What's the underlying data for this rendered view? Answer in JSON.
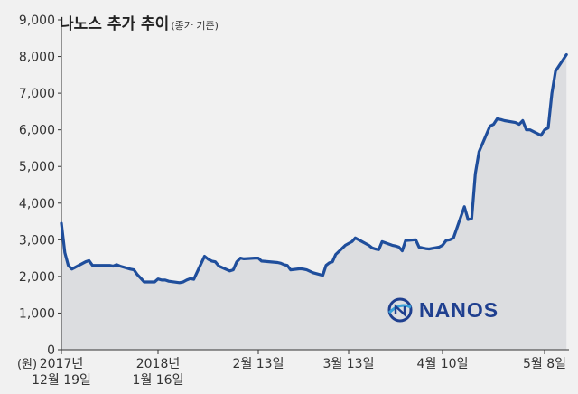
{
  "title": "나노스 추가 추이",
  "subtitle": "(종가 기준)",
  "logo_text": "NANOS",
  "colors": {
    "line": "#1f4e9c",
    "area": "#dcdde0",
    "axis": "#333333",
    "logo": "#1f3f8f"
  },
  "chart_data": {
    "type": "area",
    "title": "나노스 추가 추이",
    "subtitle": "(종가 기준)",
    "ylabel": "(원)",
    "ylim": [
      0,
      9000
    ],
    "yticks": [
      "0",
      "1,000",
      "2,000",
      "3,000",
      "4,000",
      "5,000",
      "6,000",
      "7,000",
      "8,000",
      "9,000"
    ],
    "xticks": [
      {
        "label": [
          "2017년",
          "12월 19일"
        ],
        "date": "2017-12-19"
      },
      {
        "label": [
          "2018년",
          "1월 16일"
        ],
        "date": "2018-01-16"
      },
      {
        "label": [
          "2월 13일"
        ],
        "date": "2018-02-13"
      },
      {
        "label": [
          "3월 13일"
        ],
        "date": "2018-03-13"
      },
      {
        "label": [
          "4월 10일"
        ],
        "date": "2018-04-10"
      },
      {
        "label": [
          "5월 8일"
        ],
        "date": "2018-05-08"
      }
    ],
    "grid": false,
    "series": [
      {
        "points": [
          [
            "2017-12-19",
            3450
          ],
          [
            "2017-12-20",
            2650
          ],
          [
            "2017-12-21",
            2300
          ],
          [
            "2017-12-22",
            2200
          ],
          [
            "2017-12-26",
            2400
          ],
          [
            "2017-12-27",
            2430
          ],
          [
            "2017-12-28",
            2300
          ],
          [
            "2018-01-02",
            2300
          ],
          [
            "2018-01-03",
            2280
          ],
          [
            "2018-01-04",
            2320
          ],
          [
            "2018-01-05",
            2280
          ],
          [
            "2018-01-08",
            2200
          ],
          [
            "2018-01-09",
            2180
          ],
          [
            "2018-01-10",
            2050
          ],
          [
            "2018-01-11",
            1950
          ],
          [
            "2018-01-12",
            1850
          ],
          [
            "2018-01-15",
            1850
          ],
          [
            "2018-01-16",
            1930
          ],
          [
            "2018-01-17",
            1900
          ],
          [
            "2018-01-18",
            1900
          ],
          [
            "2018-01-19",
            1870
          ],
          [
            "2018-01-22",
            1830
          ],
          [
            "2018-01-23",
            1850
          ],
          [
            "2018-01-24",
            1900
          ],
          [
            "2018-01-25",
            1940
          ],
          [
            "2018-01-26",
            1920
          ],
          [
            "2018-01-29",
            2550
          ],
          [
            "2018-01-30",
            2470
          ],
          [
            "2018-01-31",
            2420
          ],
          [
            "2018-02-01",
            2400
          ],
          [
            "2018-02-02",
            2280
          ],
          [
            "2018-02-05",
            2150
          ],
          [
            "2018-02-06",
            2180
          ],
          [
            "2018-02-07",
            2400
          ],
          [
            "2018-02-08",
            2500
          ],
          [
            "2018-02-09",
            2480
          ],
          [
            "2018-02-12",
            2500
          ],
          [
            "2018-02-13",
            2500
          ],
          [
            "2018-02-14",
            2420
          ],
          [
            "2018-02-19",
            2380
          ],
          [
            "2018-02-20",
            2360
          ],
          [
            "2018-02-21",
            2320
          ],
          [
            "2018-02-22",
            2300
          ],
          [
            "2018-02-23",
            2180
          ],
          [
            "2018-02-26",
            2210
          ],
          [
            "2018-02-27",
            2200
          ],
          [
            "2018-02-28",
            2180
          ],
          [
            "2018-03-02",
            2100
          ],
          [
            "2018-03-05",
            2030
          ],
          [
            "2018-03-06",
            2300
          ],
          [
            "2018-03-07",
            2370
          ],
          [
            "2018-03-08",
            2400
          ],
          [
            "2018-03-09",
            2600
          ],
          [
            "2018-03-12",
            2850
          ],
          [
            "2018-03-13",
            2900
          ],
          [
            "2018-03-14",
            2950
          ],
          [
            "2018-03-15",
            3050
          ],
          [
            "2018-03-16",
            3000
          ],
          [
            "2018-03-19",
            2850
          ],
          [
            "2018-03-20",
            2780
          ],
          [
            "2018-03-21",
            2750
          ],
          [
            "2018-03-22",
            2730
          ],
          [
            "2018-03-23",
            2950
          ],
          [
            "2018-03-26",
            2850
          ],
          [
            "2018-03-27",
            2830
          ],
          [
            "2018-03-28",
            2800
          ],
          [
            "2018-03-29",
            2700
          ],
          [
            "2018-03-30",
            2980
          ],
          [
            "2018-04-02",
            3000
          ],
          [
            "2018-04-03",
            2800
          ],
          [
            "2018-04-04",
            2780
          ],
          [
            "2018-04-05",
            2760
          ],
          [
            "2018-04-06",
            2750
          ],
          [
            "2018-04-09",
            2800
          ],
          [
            "2018-04-10",
            2850
          ],
          [
            "2018-04-11",
            2980
          ],
          [
            "2018-04-12",
            3000
          ],
          [
            "2018-04-13",
            3050
          ],
          [
            "2018-04-16",
            3900
          ],
          [
            "2018-04-17",
            3550
          ],
          [
            "2018-04-18",
            3580
          ],
          [
            "2018-04-19",
            4800
          ],
          [
            "2018-04-20",
            5400
          ],
          [
            "2018-04-23",
            6100
          ],
          [
            "2018-04-24",
            6150
          ],
          [
            "2018-04-25",
            6300
          ],
          [
            "2018-04-26",
            6280
          ],
          [
            "2018-04-27",
            6250
          ],
          [
            "2018-04-30",
            6200
          ],
          [
            "2018-05-01",
            6150
          ],
          [
            "2018-05-02",
            6250
          ],
          [
            "2018-05-03",
            6000
          ],
          [
            "2018-05-04",
            6000
          ],
          [
            "2018-05-07",
            5850
          ],
          [
            "2018-05-08",
            6000
          ],
          [
            "2018-05-09",
            6050
          ],
          [
            "2018-05-10",
            7000
          ],
          [
            "2018-05-11",
            7600
          ],
          [
            "2018-05-14",
            8050
          ]
        ]
      }
    ]
  }
}
